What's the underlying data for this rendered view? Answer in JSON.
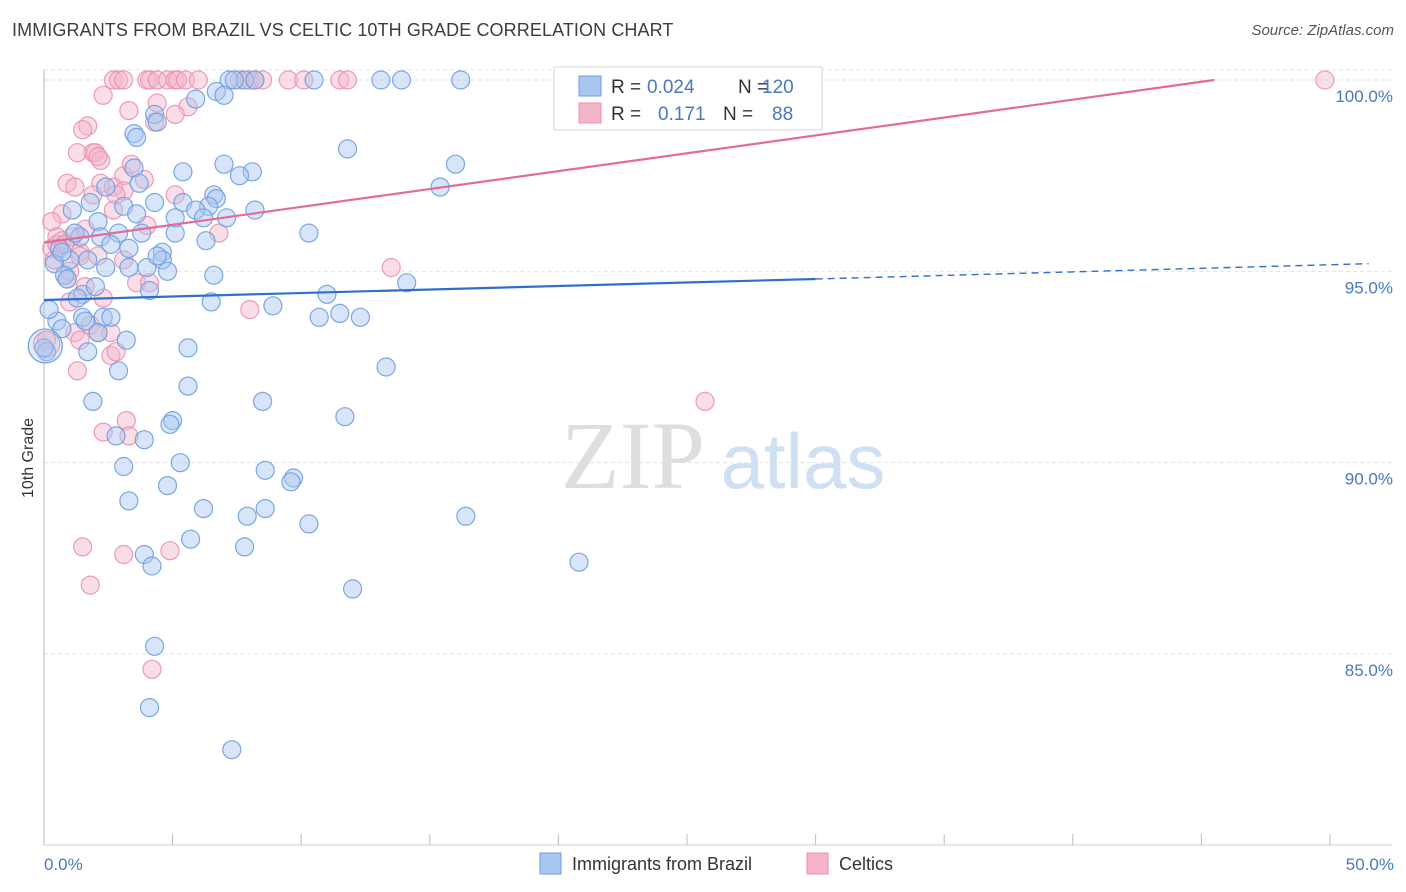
{
  "header": {
    "title": "IMMIGRANTS FROM BRAZIL VS CELTIC 10TH GRADE CORRELATION CHART",
    "source": "Source: ZipAtlas.com"
  },
  "watermark": {
    "zip": "ZIP",
    "atlas": "atlas"
  },
  "colors": {
    "blue_fill": "#a8c6ef",
    "blue_stroke": "#6d9ee0",
    "blue_line": "#2f6fcc",
    "pink_fill": "#f5b6ca",
    "pink_stroke": "#ec8fae",
    "pink_line": "#e36b95",
    "tick_text": "#4a78c0",
    "grid": "#e2e2e2"
  },
  "legend": {
    "rows": [
      {
        "r_label": "R =",
        "r_value": "0.024",
        "n_label": "N =",
        "n_value": "120",
        "color": "#a8c6ef"
      },
      {
        "r_label": "R =",
        "r_value": "0.171",
        "n_label": "N =",
        "n_value": "88",
        "color": "#f5b6ca"
      }
    ]
  },
  "chart_data": {
    "type": "scatter",
    "title": "IMMIGRANTS FROM BRAZIL VS CELTIC 10TH GRADE CORRELATION CHART",
    "xlabel": "",
    "ylabel": "10th Grade",
    "xlim": [
      0,
      50
    ],
    "ylim": [
      80.5,
      100.7
    ],
    "x_tick_labels": [
      "0.0%",
      "50.0%"
    ],
    "y_ticks": [
      85,
      90,
      95,
      100
    ],
    "y_tick_labels": [
      "85.0%",
      "90.0%",
      "95.0%",
      "100.0%"
    ],
    "legend_position": "bottom-center",
    "series": [
      {
        "name": "Immigrants from Brazil",
        "color": "#a8c6ef",
        "trend": {
          "x": [
            0,
            30
          ],
          "y": [
            94.25,
            94.8
          ],
          "dashed_to": [
            51.5,
            95.2
          ]
        },
        "points": [
          [
            7.8,
            100
          ],
          [
            7.2,
            100
          ],
          [
            7.4,
            100
          ],
          [
            8.2,
            100
          ],
          [
            10.5,
            100
          ],
          [
            13.1,
            100
          ],
          [
            13.9,
            100
          ],
          [
            16.2,
            100
          ],
          [
            6.7,
            99.7
          ],
          [
            7.0,
            99.6
          ],
          [
            5.9,
            99.5
          ],
          [
            4.3,
            99.1
          ],
          [
            4.4,
            98.9
          ],
          [
            3.5,
            98.6
          ],
          [
            3.6,
            98.5
          ],
          [
            11.8,
            98.2
          ],
          [
            16.0,
            97.8
          ],
          [
            7.0,
            97.8
          ],
          [
            5.4,
            97.6
          ],
          [
            8.1,
            97.6
          ],
          [
            3.5,
            97.7
          ],
          [
            7.6,
            97.5
          ],
          [
            3.7,
            97.3
          ],
          [
            15.4,
            97.2
          ],
          [
            6.6,
            97.0
          ],
          [
            6.7,
            96.9
          ],
          [
            5.4,
            96.8
          ],
          [
            4.3,
            96.8
          ],
          [
            6.4,
            96.7
          ],
          [
            5.9,
            96.6
          ],
          [
            8.2,
            96.6
          ],
          [
            1.1,
            96.6
          ],
          [
            2.4,
            97.2
          ],
          [
            1.8,
            96.8
          ],
          [
            3.1,
            96.7
          ],
          [
            7.1,
            96.4
          ],
          [
            3.6,
            96.5
          ],
          [
            2.1,
            96.3
          ],
          [
            6.2,
            96.4
          ],
          [
            1.4,
            95.9
          ],
          [
            2.2,
            95.9
          ],
          [
            2.9,
            96.0
          ],
          [
            3.8,
            96.0
          ],
          [
            5.1,
            96.0
          ],
          [
            10.3,
            96.0
          ],
          [
            2.6,
            95.7
          ],
          [
            0.6,
            95.6
          ],
          [
            1.0,
            95.3
          ],
          [
            3.3,
            95.6
          ],
          [
            4.6,
            95.5
          ],
          [
            4.6,
            95.3
          ],
          [
            0.4,
            95.2
          ],
          [
            1.7,
            95.3
          ],
          [
            2.4,
            95.1
          ],
          [
            3.3,
            95.1
          ],
          [
            4.0,
            95.1
          ],
          [
            4.8,
            95.0
          ],
          [
            0.8,
            94.9
          ],
          [
            6.6,
            94.9
          ],
          [
            0.9,
            94.8
          ],
          [
            14.1,
            94.7
          ],
          [
            4.1,
            94.5
          ],
          [
            1.5,
            94.4
          ],
          [
            11.0,
            94.4
          ],
          [
            6.5,
            94.2
          ],
          [
            8.9,
            94.1
          ],
          [
            10.7,
            93.8
          ],
          [
            11.5,
            93.9
          ],
          [
            12.3,
            93.8
          ],
          [
            1.5,
            93.8
          ],
          [
            2.3,
            93.8
          ],
          [
            2.6,
            93.8
          ],
          [
            2.1,
            93.4
          ],
          [
            1.6,
            93.7
          ],
          [
            0.5,
            93.7
          ],
          [
            0.7,
            93.5
          ],
          [
            3.2,
            93.2
          ],
          [
            0.1,
            92.9
          ],
          [
            1.7,
            92.9
          ],
          [
            5.6,
            93.0
          ],
          [
            13.3,
            92.5
          ],
          [
            2.9,
            92.4
          ],
          [
            5.6,
            92.0
          ],
          [
            1.9,
            91.6
          ],
          [
            8.5,
            91.6
          ],
          [
            5.0,
            91.1
          ],
          [
            4.9,
            91.0
          ],
          [
            11.7,
            91.2
          ],
          [
            2.8,
            90.7
          ],
          [
            3.9,
            90.6
          ],
          [
            5.3,
            90.0
          ],
          [
            3.1,
            89.9
          ],
          [
            8.6,
            89.8
          ],
          [
            9.7,
            89.6
          ],
          [
            9.6,
            89.5
          ],
          [
            4.8,
            89.4
          ],
          [
            3.3,
            89.0
          ],
          [
            6.2,
            88.8
          ],
          [
            8.6,
            88.8
          ],
          [
            7.9,
            88.6
          ],
          [
            10.3,
            88.4
          ],
          [
            16.4,
            88.6
          ],
          [
            5.7,
            88.0
          ],
          [
            7.8,
            87.8
          ],
          [
            3.9,
            87.6
          ],
          [
            20.8,
            87.4
          ],
          [
            4.2,
            87.3
          ],
          [
            12.0,
            86.7
          ],
          [
            4.3,
            85.2
          ],
          [
            4.1,
            83.6
          ],
          [
            7.3,
            82.5
          ],
          [
            0.0,
            93.0
          ],
          [
            0.2,
            94.0
          ],
          [
            1.3,
            94.3
          ],
          [
            0.7,
            95.5
          ],
          [
            2.0,
            94.6
          ],
          [
            4.4,
            95.4
          ],
          [
            6.3,
            95.8
          ],
          [
            1.2,
            96.0
          ],
          [
            5.1,
            96.4
          ]
        ]
      },
      {
        "name": "Celtics",
        "color": "#f5b6ca",
        "trend": {
          "x": [
            0,
            45.5
          ],
          "y": [
            95.75,
            100.0
          ]
        },
        "points": [
          [
            2.7,
            100
          ],
          [
            2.9,
            100
          ],
          [
            3.1,
            100
          ],
          [
            4.0,
            100
          ],
          [
            4.1,
            100
          ],
          [
            4.4,
            100
          ],
          [
            4.8,
            100
          ],
          [
            5.1,
            100
          ],
          [
            5.2,
            100
          ],
          [
            5.5,
            100
          ],
          [
            8.0,
            100
          ],
          [
            8.2,
            100
          ],
          [
            8.5,
            100
          ],
          [
            9.5,
            100
          ],
          [
            10.1,
            100
          ],
          [
            11.5,
            100
          ],
          [
            11.8,
            100
          ],
          [
            49.8,
            100
          ],
          [
            2.3,
            99.6
          ],
          [
            5.6,
            99.3
          ],
          [
            3.3,
            99.2
          ],
          [
            5.1,
            99.1
          ],
          [
            4.3,
            98.9
          ],
          [
            1.7,
            98.8
          ],
          [
            1.5,
            98.7
          ],
          [
            1.9,
            98.1
          ],
          [
            2.0,
            98.1
          ],
          [
            1.3,
            98.1
          ],
          [
            2.2,
            97.9
          ],
          [
            3.1,
            97.5
          ],
          [
            2.2,
            97.3
          ],
          [
            3.9,
            97.4
          ],
          [
            0.9,
            97.3
          ],
          [
            1.2,
            97.2
          ],
          [
            2.7,
            97.2
          ],
          [
            3.1,
            97.1
          ],
          [
            2.8,
            97.0
          ],
          [
            5.1,
            97.0
          ],
          [
            1.9,
            97.0
          ],
          [
            0.7,
            96.5
          ],
          [
            0.3,
            96.3
          ],
          [
            4.0,
            96.2
          ],
          [
            6.8,
            96.0
          ],
          [
            0.5,
            95.9
          ],
          [
            1.1,
            95.9
          ],
          [
            0.3,
            95.6
          ],
          [
            0.5,
            95.7
          ],
          [
            0.7,
            95.8
          ],
          [
            1.4,
            95.5
          ],
          [
            1.4,
            95.4
          ],
          [
            2.1,
            95.4
          ],
          [
            3.1,
            95.3
          ],
          [
            13.5,
            95.1
          ],
          [
            0.9,
            94.8
          ],
          [
            1.6,
            94.6
          ],
          [
            3.6,
            94.7
          ],
          [
            4.1,
            94.7
          ],
          [
            1.0,
            94.2
          ],
          [
            2.3,
            94.3
          ],
          [
            8.0,
            94.0
          ],
          [
            1.8,
            93.6
          ],
          [
            1.2,
            93.4
          ],
          [
            2.1,
            93.4
          ],
          [
            2.6,
            93.4
          ],
          [
            0.1,
            93.2
          ],
          [
            1.4,
            93.2
          ],
          [
            2.6,
            92.8
          ],
          [
            2.8,
            92.9
          ],
          [
            1.3,
            92.4
          ],
          [
            25.7,
            91.6
          ],
          [
            3.2,
            91.1
          ],
          [
            2.3,
            90.8
          ],
          [
            3.3,
            90.7
          ],
          [
            1.5,
            87.8
          ],
          [
            3.1,
            87.6
          ],
          [
            4.9,
            87.7
          ],
          [
            1.8,
            86.8
          ],
          [
            4.2,
            84.6
          ],
          [
            0.8,
            95.7
          ],
          [
            0.4,
            95.3
          ],
          [
            1.0,
            95.0
          ],
          [
            1.6,
            96.1
          ],
          [
            2.7,
            96.6
          ],
          [
            3.4,
            97.8
          ],
          [
            2.1,
            98.0
          ],
          [
            4.4,
            99.4
          ],
          [
            6.0,
            100.0
          ],
          [
            7.6,
            100.0
          ]
        ]
      }
    ]
  },
  "bottom_legend": {
    "items": [
      {
        "label": "Immigrants from Brazil",
        "color": "#a8c6ef"
      },
      {
        "label": "Celtics",
        "color": "#f5b6ca"
      }
    ]
  }
}
